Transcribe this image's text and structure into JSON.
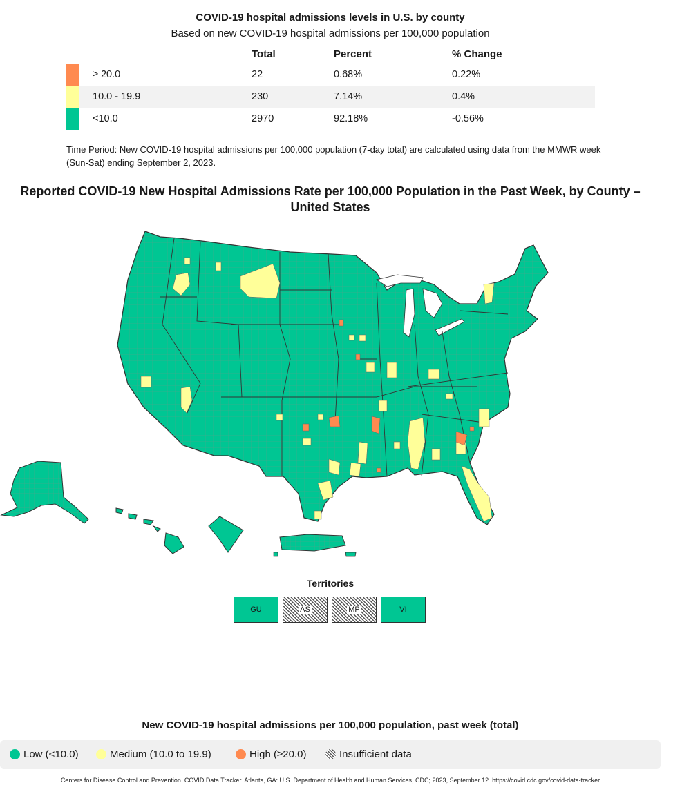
{
  "summary": {
    "title": "COVID-19 hospital admissions levels in U.S. by county",
    "subtitle": "Based on new COVID-19 hospital admissions per 100,000 population",
    "headers": {
      "total": "Total",
      "percent": "Percent",
      "change": "% Change"
    },
    "rows": [
      {
        "range": "≥ 20.0",
        "total": "22",
        "percent": "0.68%",
        "change": "0.22%",
        "color": "#ff8a50"
      },
      {
        "range": "10.0 - 19.9",
        "total": "230",
        "percent": "7.14%",
        "change": "0.4%",
        "color": "#ffff99"
      },
      {
        "range": "<10.0",
        "total": "2970",
        "percent": "92.18%",
        "change": "-0.56%",
        "color": "#00c693"
      }
    ],
    "time_period": "Time Period: New COVID-19 hospital admissions per 100,000 population (7-day total) are calculated using data from the MMWR week (Sun-Sat) ending September 2, 2023."
  },
  "map": {
    "title": "Reported COVID-19 New Hospital Admissions Rate per 100,000 Population in the Past Week, by County – United States",
    "colors": {
      "low": "#00c693",
      "medium": "#ffff99",
      "high": "#ff8a50",
      "border": "#666666"
    }
  },
  "territories": {
    "title": "Territories",
    "items": [
      {
        "code": "GU",
        "level": "low"
      },
      {
        "code": "AS",
        "level": "insufficient"
      },
      {
        "code": "MP",
        "level": "insufficient"
      },
      {
        "code": "VI",
        "level": "low"
      }
    ]
  },
  "legend": {
    "title": "New COVID-19 hospital admissions per 100,000 population, past week (total)",
    "items": [
      {
        "label": "Low (<10.0)",
        "color": "#00c693"
      },
      {
        "label": "Medium (10.0 to 19.9)",
        "color": "#ffff99"
      },
      {
        "label": "High (≥20.0)",
        "color": "#ff8a50"
      },
      {
        "label": "Insufficient data",
        "pattern": "hatched"
      }
    ]
  },
  "citation": "Centers for Disease Control and Prevention. COVID Data Tracker. Atlanta, GA: U.S. Department of Health and Human Services, CDC; 2023, September 12. https://covid.cdc.gov/covid-data-tracker"
}
